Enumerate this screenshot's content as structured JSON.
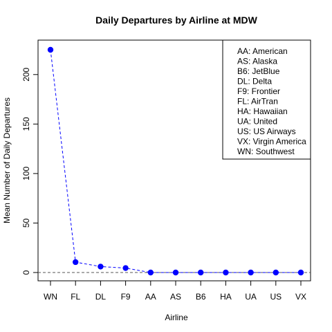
{
  "chart_data": {
    "type": "line",
    "title": "Daily Departures by Airline at MDW",
    "xlabel": "Airline",
    "ylabel": "Mean Number of Daily Departures",
    "categories": [
      "WN",
      "FL",
      "DL",
      "F9",
      "AA",
      "AS",
      "B6",
      "HA",
      "UA",
      "US",
      "VX"
    ],
    "series": [
      {
        "values": [
          225,
          10.5,
          6,
          4.5,
          0,
          0,
          0,
          0,
          0,
          0,
          0
        ]
      }
    ],
    "ylim": [
      0,
      225
    ],
    "yticks": [
      "0",
      "50",
      "100",
      "150",
      "200"
    ],
    "reference_line": 0,
    "grid": false,
    "legend_position": "top-right",
    "legend": [
      "AA: American",
      "AS: Alaska",
      "B6: JetBlue",
      "DL: Delta",
      "F9: Frontier",
      "FL: AirTran",
      "HA: Hawaiian",
      "UA: United",
      "US: US Airways",
      "VX: Virgin America",
      "WN: Southwest"
    ],
    "colors": {
      "series": "#0000ff",
      "reference": "#555555"
    }
  }
}
